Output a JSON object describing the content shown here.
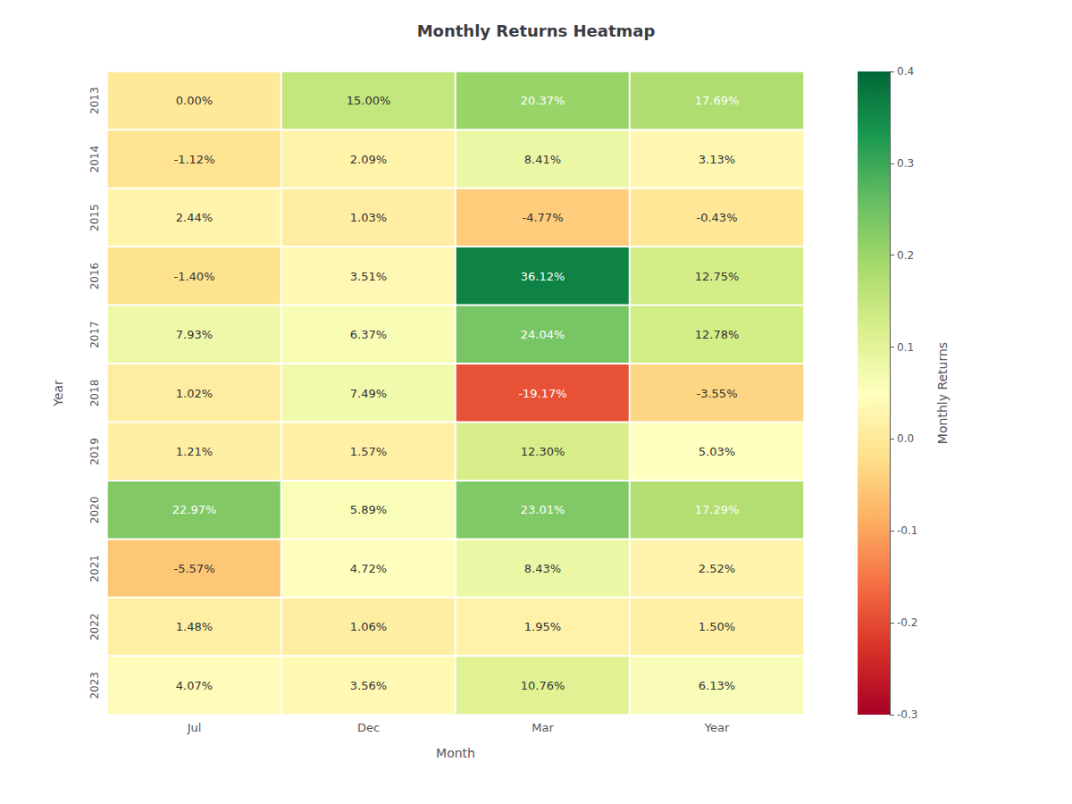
{
  "chart_data": {
    "type": "heatmap",
    "title": "Monthly Returns Heatmap",
    "xlabel": "Month",
    "ylabel": "Year",
    "categories": [
      "Jul",
      "Dec",
      "Mar",
      "Year"
    ],
    "rows": [
      2013,
      2014,
      2015,
      2016,
      2017,
      2018,
      2019,
      2020,
      2021,
      2022,
      2023
    ],
    "values": [
      [
        0.0,
        0.15,
        0.2037,
        0.1769
      ],
      [
        -0.0112,
        0.0209,
        0.0841,
        0.0313
      ],
      [
        0.0244,
        0.0103,
        -0.0477,
        -0.0043
      ],
      [
        -0.014,
        0.0351,
        0.3612,
        0.1275
      ],
      [
        0.0793,
        0.0637,
        0.2404,
        0.1278
      ],
      [
        0.0102,
        0.0749,
        -0.1917,
        -0.0355
      ],
      [
        0.0121,
        0.0157,
        0.123,
        0.0503
      ],
      [
        0.2297,
        0.0589,
        0.2301,
        0.1729
      ],
      [
        -0.0557,
        0.0472,
        0.0843,
        0.0252
      ],
      [
        0.0148,
        0.0106,
        0.0195,
        0.015
      ],
      [
        0.0407,
        0.0356,
        0.1076,
        0.0613
      ]
    ],
    "value_labels": [
      [
        "0.00%",
        "15.00%",
        "20.37%",
        "17.69%"
      ],
      [
        "-1.12%",
        "2.09%",
        "8.41%",
        "3.13%"
      ],
      [
        "2.44%",
        "1.03%",
        "-4.77%",
        "-0.43%"
      ],
      [
        "-1.40%",
        "3.51%",
        "36.12%",
        "12.75%"
      ],
      [
        "7.93%",
        "6.37%",
        "24.04%",
        "12.78%"
      ],
      [
        "1.02%",
        "7.49%",
        "-19.17%",
        "-3.55%"
      ],
      [
        "1.21%",
        "1.57%",
        "12.30%",
        "5.03%"
      ],
      [
        "22.97%",
        "5.89%",
        "23.01%",
        "17.29%"
      ],
      [
        "-5.57%",
        "4.72%",
        "8.43%",
        "2.52%"
      ],
      [
        "1.48%",
        "1.06%",
        "1.95%",
        "1.50%"
      ],
      [
        "4.07%",
        "3.56%",
        "10.76%",
        "6.13%"
      ]
    ],
    "colorbar_label": "Monthly Returns",
    "colorbar_range": [
      -0.3,
      0.4
    ],
    "colorbar_ticks": [
      -0.3,
      -0.2,
      -0.1,
      {
        "value": 0,
        "label": "0.0"
      },
      0.1,
      0.2,
      0.3,
      0.4
    ],
    "color": "RdYlGn",
    "data_labels": true,
    "grid": false
  }
}
